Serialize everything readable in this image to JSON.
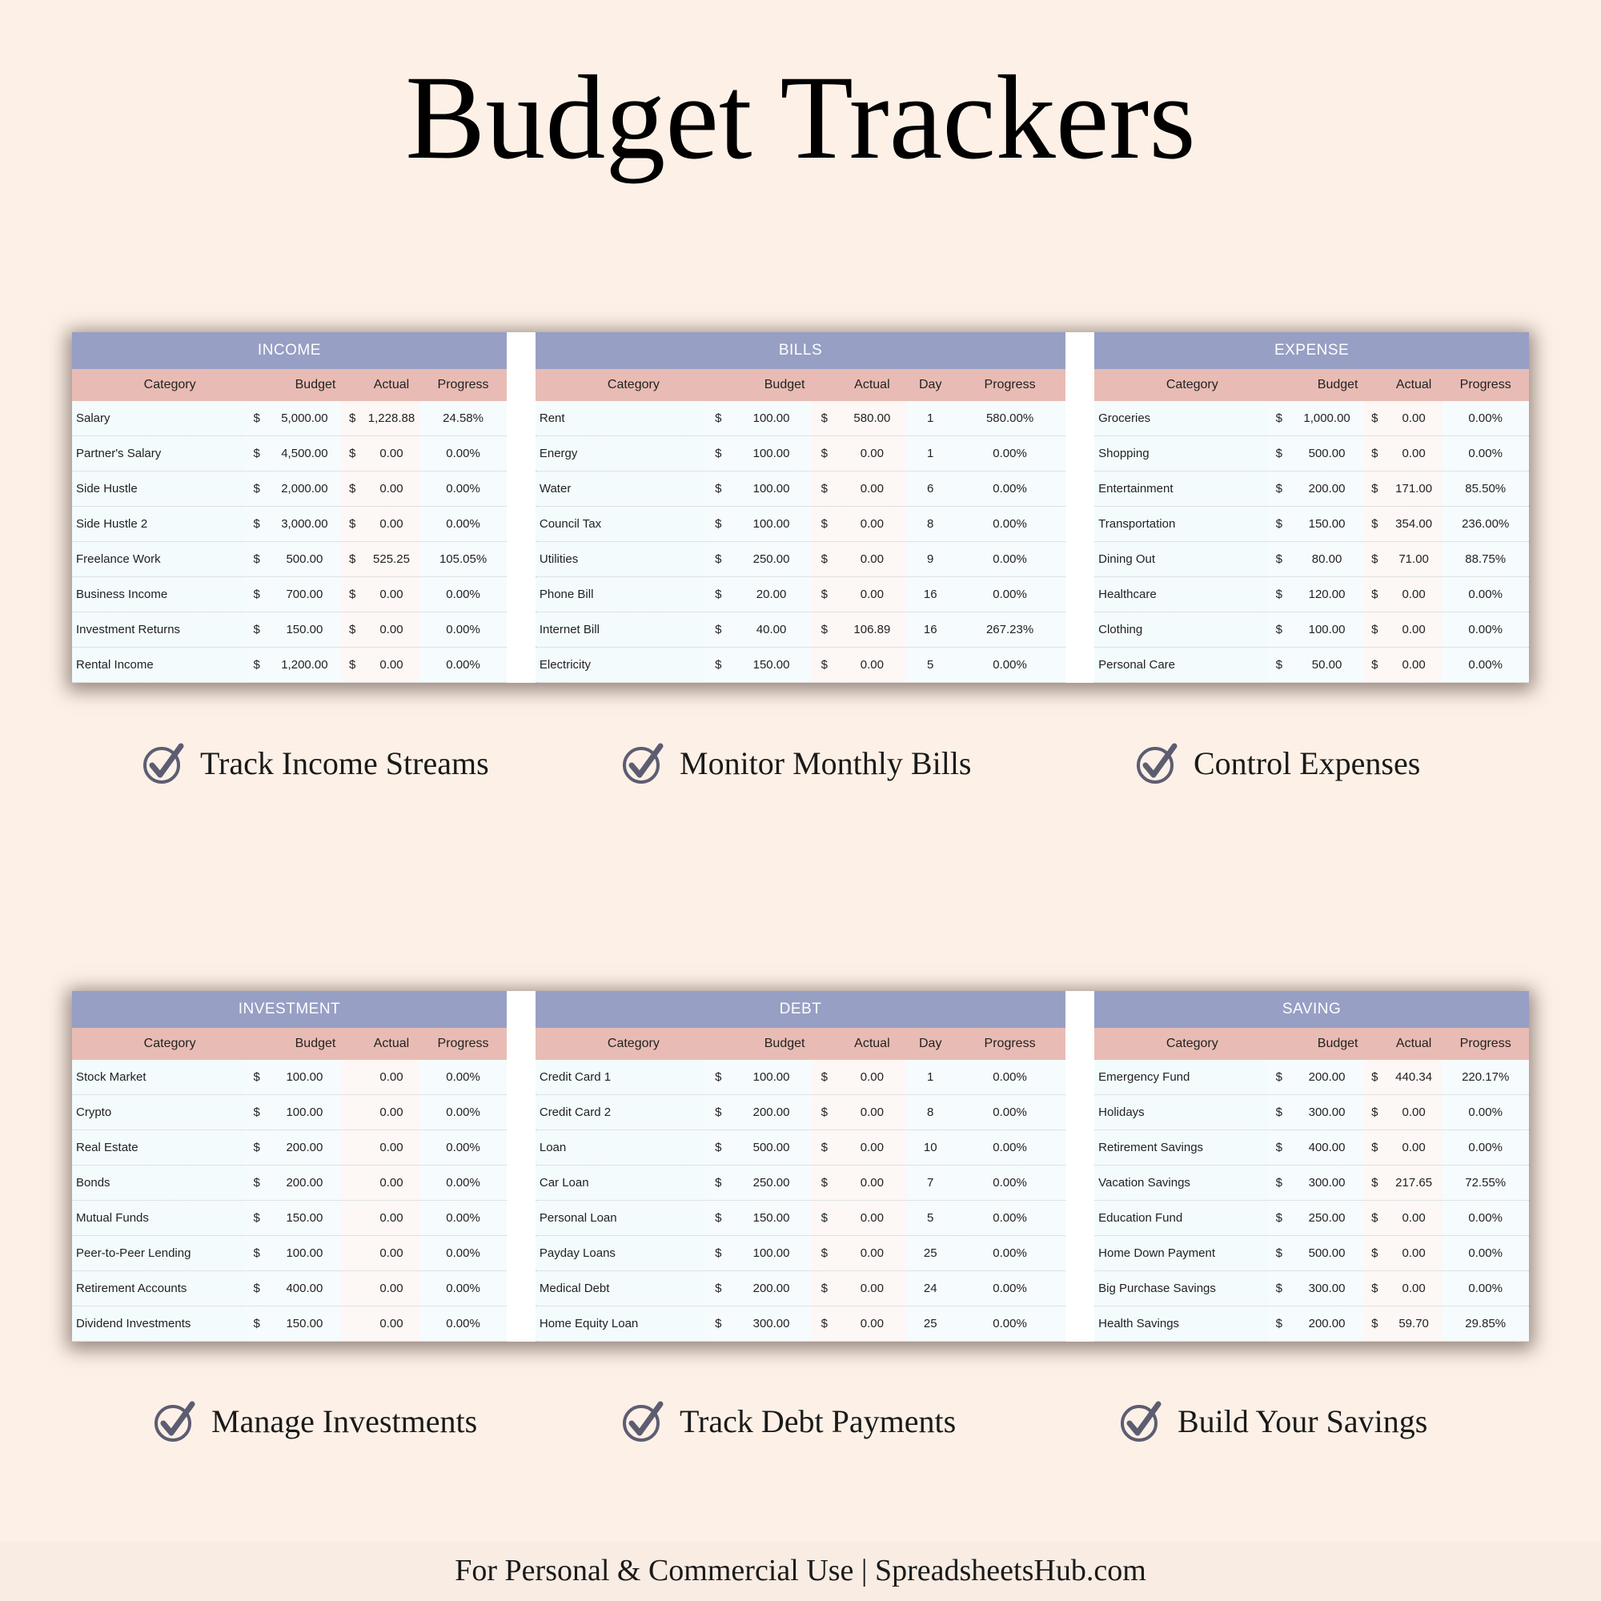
{
  "title": "Budget Trackers",
  "colors": {
    "background": "#fdf1e7",
    "section_header": "#979fc4",
    "column_header": "#e8bcb4",
    "check": "#5d5d72"
  },
  "trackers": {
    "income": {
      "title": "INCOME",
      "columns": [
        "Category",
        "Budget",
        "Actual",
        "Progress"
      ],
      "rows": [
        {
          "category": "Salary",
          "budget_currency": "$",
          "budget": "5,000.00",
          "actual_currency": "$",
          "actual": "1,228.88",
          "progress": "24.58%"
        },
        {
          "category": "Partner's Salary",
          "budget_currency": "$",
          "budget": "4,500.00",
          "actual_currency": "$",
          "actual": "0.00",
          "progress": "0.00%"
        },
        {
          "category": "Side Hustle",
          "budget_currency": "$",
          "budget": "2,000.00",
          "actual_currency": "$",
          "actual": "0.00",
          "progress": "0.00%"
        },
        {
          "category": "Side Hustle 2",
          "budget_currency": "$",
          "budget": "3,000.00",
          "actual_currency": "$",
          "actual": "0.00",
          "progress": "0.00%"
        },
        {
          "category": "Freelance Work",
          "budget_currency": "$",
          "budget": "500.00",
          "actual_currency": "$",
          "actual": "525.25",
          "progress": "105.05%"
        },
        {
          "category": "Business Income",
          "budget_currency": "$",
          "budget": "700.00",
          "actual_currency": "$",
          "actual": "0.00",
          "progress": "0.00%"
        },
        {
          "category": "Investment Returns",
          "budget_currency": "$",
          "budget": "150.00",
          "actual_currency": "$",
          "actual": "0.00",
          "progress": "0.00%"
        },
        {
          "category": "Rental Income",
          "budget_currency": "$",
          "budget": "1,200.00",
          "actual_currency": "$",
          "actual": "0.00",
          "progress": "0.00%"
        }
      ]
    },
    "bills": {
      "title": "BILLS",
      "columns": [
        "Category",
        "Budget",
        "Actual",
        "Day",
        "Progress"
      ],
      "rows": [
        {
          "category": "Rent",
          "budget_currency": "$",
          "budget": "100.00",
          "actual_currency": "$",
          "actual": "580.00",
          "day": "1",
          "progress": "580.00%"
        },
        {
          "category": "Energy",
          "budget_currency": "$",
          "budget": "100.00",
          "actual_currency": "$",
          "actual": "0.00",
          "day": "1",
          "progress": "0.00%"
        },
        {
          "category": "Water",
          "budget_currency": "$",
          "budget": "100.00",
          "actual_currency": "$",
          "actual": "0.00",
          "day": "6",
          "progress": "0.00%"
        },
        {
          "category": "Council Tax",
          "budget_currency": "$",
          "budget": "100.00",
          "actual_currency": "$",
          "actual": "0.00",
          "day": "8",
          "progress": "0.00%"
        },
        {
          "category": "Utilities",
          "budget_currency": "$",
          "budget": "250.00",
          "actual_currency": "$",
          "actual": "0.00",
          "day": "9",
          "progress": "0.00%"
        },
        {
          "category": "Phone Bill",
          "budget_currency": "$",
          "budget": "20.00",
          "actual_currency": "$",
          "actual": "0.00",
          "day": "16",
          "progress": "0.00%"
        },
        {
          "category": "Internet Bill",
          "budget_currency": "$",
          "budget": "40.00",
          "actual_currency": "$",
          "actual": "106.89",
          "day": "16",
          "progress": "267.23%"
        },
        {
          "category": "Electricity",
          "budget_currency": "$",
          "budget": "150.00",
          "actual_currency": "$",
          "actual": "0.00",
          "day": "5",
          "progress": "0.00%"
        }
      ]
    },
    "expense": {
      "title": "EXPENSE",
      "columns": [
        "Category",
        "Budget",
        "Actual",
        "Progress"
      ],
      "rows": [
        {
          "category": "Groceries",
          "budget_currency": "$",
          "budget": "1,000.00",
          "actual_currency": "$",
          "actual": "0.00",
          "progress": "0.00%"
        },
        {
          "category": "Shopping",
          "budget_currency": "$",
          "budget": "500.00",
          "actual_currency": "$",
          "actual": "0.00",
          "progress": "0.00%"
        },
        {
          "category": "Entertainment",
          "budget_currency": "$",
          "budget": "200.00",
          "actual_currency": "$",
          "actual": "171.00",
          "progress": "85.50%"
        },
        {
          "category": "Transportation",
          "budget_currency": "$",
          "budget": "150.00",
          "actual_currency": "$",
          "actual": "354.00",
          "progress": "236.00%"
        },
        {
          "category": "Dining Out",
          "budget_currency": "$",
          "budget": "80.00",
          "actual_currency": "$",
          "actual": "71.00",
          "progress": "88.75%"
        },
        {
          "category": "Healthcare",
          "budget_currency": "$",
          "budget": "120.00",
          "actual_currency": "$",
          "actual": "0.00",
          "progress": "0.00%"
        },
        {
          "category": "Clothing",
          "budget_currency": "$",
          "budget": "100.00",
          "actual_currency": "$",
          "actual": "0.00",
          "progress": "0.00%"
        },
        {
          "category": "Personal Care",
          "budget_currency": "$",
          "budget": "50.00",
          "actual_currency": "$",
          "actual": "0.00",
          "progress": "0.00%"
        }
      ]
    },
    "investment": {
      "title": "INVESTMENT",
      "columns": [
        "Category",
        "Budget",
        "Actual",
        "Progress"
      ],
      "rows": [
        {
          "category": "Stock Market",
          "budget_currency": "$",
          "budget": "100.00",
          "actual_currency": "",
          "actual": "0.00",
          "progress": "0.00%"
        },
        {
          "category": "Crypto",
          "budget_currency": "$",
          "budget": "100.00",
          "actual_currency": "",
          "actual": "0.00",
          "progress": "0.00%"
        },
        {
          "category": "Real Estate",
          "budget_currency": "$",
          "budget": "200.00",
          "actual_currency": "",
          "actual": "0.00",
          "progress": "0.00%"
        },
        {
          "category": "Bonds",
          "budget_currency": "$",
          "budget": "200.00",
          "actual_currency": "",
          "actual": "0.00",
          "progress": "0.00%"
        },
        {
          "category": "Mutual Funds",
          "budget_currency": "$",
          "budget": "150.00",
          "actual_currency": "",
          "actual": "0.00",
          "progress": "0.00%"
        },
        {
          "category": "Peer-to-Peer Lending",
          "budget_currency": "$",
          "budget": "100.00",
          "actual_currency": "",
          "actual": "0.00",
          "progress": "0.00%"
        },
        {
          "category": "Retirement Accounts",
          "budget_currency": "$",
          "budget": "400.00",
          "actual_currency": "",
          "actual": "0.00",
          "progress": "0.00%"
        },
        {
          "category": "Dividend Investments",
          "budget_currency": "$",
          "budget": "150.00",
          "actual_currency": "",
          "actual": "0.00",
          "progress": "0.00%"
        }
      ]
    },
    "debt": {
      "title": "DEBT",
      "columns": [
        "Category",
        "Budget",
        "Actual",
        "Day",
        "Progress"
      ],
      "rows": [
        {
          "category": "Credit Card 1",
          "budget_currency": "$",
          "budget": "100.00",
          "actual_currency": "$",
          "actual": "0.00",
          "day": "1",
          "progress": "0.00%"
        },
        {
          "category": "Credit Card 2",
          "budget_currency": "$",
          "budget": "200.00",
          "actual_currency": "$",
          "actual": "0.00",
          "day": "8",
          "progress": "0.00%"
        },
        {
          "category": "Loan",
          "budget_currency": "$",
          "budget": "500.00",
          "actual_currency": "$",
          "actual": "0.00",
          "day": "10",
          "progress": "0.00%"
        },
        {
          "category": "Car Loan",
          "budget_currency": "$",
          "budget": "250.00",
          "actual_currency": "$",
          "actual": "0.00",
          "day": "7",
          "progress": "0.00%"
        },
        {
          "category": "Personal Loan",
          "budget_currency": "$",
          "budget": "150.00",
          "actual_currency": "$",
          "actual": "0.00",
          "day": "5",
          "progress": "0.00%"
        },
        {
          "category": "Payday Loans",
          "budget_currency": "$",
          "budget": "100.00",
          "actual_currency": "$",
          "actual": "0.00",
          "day": "25",
          "progress": "0.00%"
        },
        {
          "category": "Medical Debt",
          "budget_currency": "$",
          "budget": "200.00",
          "actual_currency": "$",
          "actual": "0.00",
          "day": "24",
          "progress": "0.00%"
        },
        {
          "category": "Home Equity Loan",
          "budget_currency": "$",
          "budget": "300.00",
          "actual_currency": "$",
          "actual": "0.00",
          "day": "25",
          "progress": "0.00%"
        }
      ]
    },
    "saving": {
      "title": "SAVING",
      "columns": [
        "Category",
        "Budget",
        "Actual",
        "Progress"
      ],
      "rows": [
        {
          "category": "Emergency Fund",
          "budget_currency": "$",
          "budget": "200.00",
          "actual_currency": "$",
          "actual": "440.34",
          "progress": "220.17%"
        },
        {
          "category": "Holidays",
          "budget_currency": "$",
          "budget": "300.00",
          "actual_currency": "$",
          "actual": "0.00",
          "progress": "0.00%"
        },
        {
          "category": "Retirement Savings",
          "budget_currency": "$",
          "budget": "400.00",
          "actual_currency": "$",
          "actual": "0.00",
          "progress": "0.00%"
        },
        {
          "category": "Vacation Savings",
          "budget_currency": "$",
          "budget": "300.00",
          "actual_currency": "$",
          "actual": "217.65",
          "progress": "72.55%"
        },
        {
          "category": "Education Fund",
          "budget_currency": "$",
          "budget": "250.00",
          "actual_currency": "$",
          "actual": "0.00",
          "progress": "0.00%"
        },
        {
          "category": "Home Down Payment",
          "budget_currency": "$",
          "budget": "500.00",
          "actual_currency": "$",
          "actual": "0.00",
          "progress": "0.00%"
        },
        {
          "category": "Big Purchase Savings",
          "budget_currency": "$",
          "budget": "300.00",
          "actual_currency": "$",
          "actual": "0.00",
          "progress": "0.00%"
        },
        {
          "category": "Health Savings",
          "budget_currency": "$",
          "budget": "200.00",
          "actual_currency": "$",
          "actual": "59.70",
          "progress": "29.85%"
        }
      ]
    }
  },
  "features_top": [
    "Track Income Streams",
    "Monitor Monthly Bills",
    "Control Expenses"
  ],
  "features_bottom": [
    "Manage Investments",
    "Track Debt Payments",
    "Build Your Savings"
  ],
  "footer": "For Personal & Commercial Use  |  SpreadsheetsHub.com"
}
